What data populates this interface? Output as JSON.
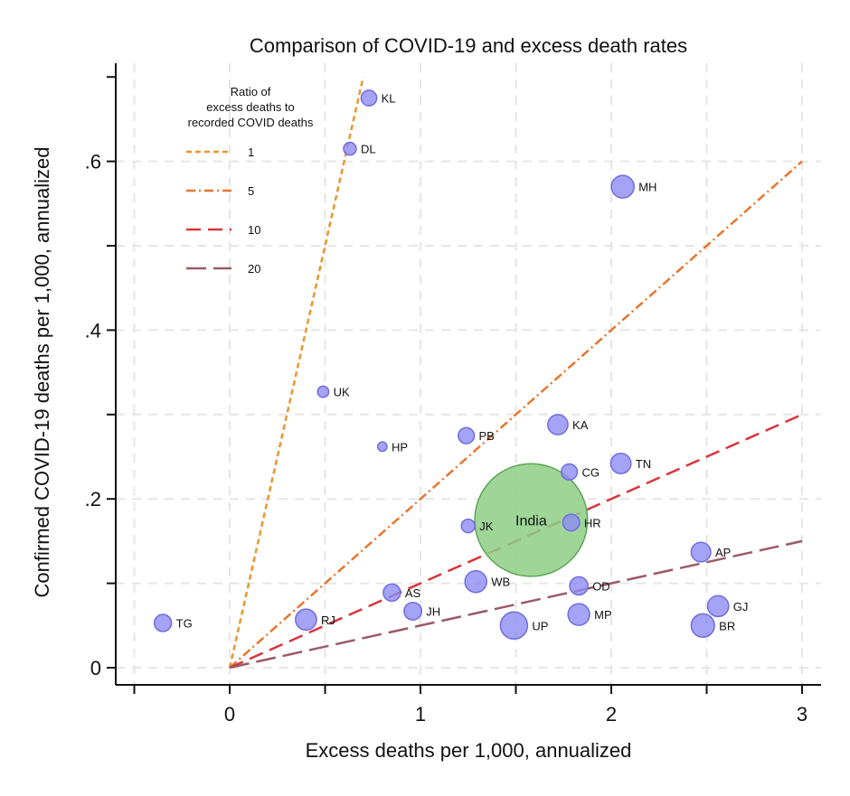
{
  "chart_data": {
    "type": "scatter",
    "title": "Comparison of COVID-19 and excess death rates",
    "xlabel": "Excess deaths per 1,000, annualized",
    "ylabel": "Confirmed COVID-19 deaths per 1,000, annualized",
    "xlim": [
      -0.5,
      3.1
    ],
    "ylim": [
      -0.02,
      0.7
    ],
    "x_ticks": [
      0,
      1,
      2,
      3
    ],
    "x_tick_labels": [
      "0",
      "1",
      "2",
      "3"
    ],
    "y_ticks": [
      0,
      0.2,
      0.4,
      0.6
    ],
    "y_tick_labels": [
      "0",
      ".2",
      ".4",
      ".6"
    ],
    "grid": true,
    "legend_position": "top-left",
    "legend": {
      "title_lines": [
        "Ratio of",
        "excess deaths to",
        "recorded COVID deaths"
      ],
      "entries": [
        {
          "label": "1",
          "ratio": 1,
          "color": "#e8962e",
          "dash": "short"
        },
        {
          "label": "5",
          "ratio": 5,
          "color": "#e8762e",
          "dash": "dashdot"
        },
        {
          "label": "10",
          "ratio": 10,
          "color": "#d9343a",
          "dash": "long"
        },
        {
          "label": "20",
          "ratio": 20,
          "color": "#9a5a66",
          "dash": "longdash"
        }
      ]
    },
    "point_color": "#8d8cf2",
    "point_edge": "#6f6ee0",
    "aggregate_color": "#8ecf86",
    "aggregate_edge": "#5aa552",
    "points": [
      {
        "label": "KL",
        "x": 0.73,
        "y": 0.675,
        "size": 0.33
      },
      {
        "label": "DL",
        "x": 0.63,
        "y": 0.615,
        "size": 0.22
      },
      {
        "label": "MH",
        "x": 2.06,
        "y": 0.57,
        "size": 0.7
      },
      {
        "label": "UK",
        "x": 0.49,
        "y": 0.327,
        "size": 0.17
      },
      {
        "label": "HP",
        "x": 0.8,
        "y": 0.262,
        "size": 0.12
      },
      {
        "label": "PB",
        "x": 1.24,
        "y": 0.275,
        "size": 0.35
      },
      {
        "label": "KA",
        "x": 1.72,
        "y": 0.288,
        "size": 0.55
      },
      {
        "label": "CG",
        "x": 1.78,
        "y": 0.232,
        "size": 0.35
      },
      {
        "label": "TN",
        "x": 2.05,
        "y": 0.242,
        "size": 0.56
      },
      {
        "label": "JK",
        "x": 1.25,
        "y": 0.168,
        "size": 0.25
      },
      {
        "label": "HR",
        "x": 1.79,
        "y": 0.172,
        "size": 0.38
      },
      {
        "label": "AP",
        "x": 2.47,
        "y": 0.137,
        "size": 0.52
      },
      {
        "label": "WB",
        "x": 1.29,
        "y": 0.102,
        "size": 0.64
      },
      {
        "label": "OD",
        "x": 1.83,
        "y": 0.097,
        "size": 0.45
      },
      {
        "label": "AS",
        "x": 0.85,
        "y": 0.089,
        "size": 0.4
      },
      {
        "label": "JH",
        "x": 0.96,
        "y": 0.067,
        "size": 0.42
      },
      {
        "label": "GJ",
        "x": 2.56,
        "y": 0.073,
        "size": 0.6
      },
      {
        "label": "MP",
        "x": 1.83,
        "y": 0.063,
        "size": 0.64
      },
      {
        "label": "RJ",
        "x": 0.4,
        "y": 0.057,
        "size": 0.6
      },
      {
        "label": "UP",
        "x": 1.49,
        "y": 0.05,
        "size": 1.0
      },
      {
        "label": "BR",
        "x": 2.48,
        "y": 0.05,
        "size": 0.74
      },
      {
        "label": "TG",
        "x": -0.35,
        "y": 0.053,
        "size": 0.4
      }
    ],
    "aggregate": {
      "label": "India",
      "x": 1.58,
      "y": 0.175,
      "size": 3.0
    }
  }
}
